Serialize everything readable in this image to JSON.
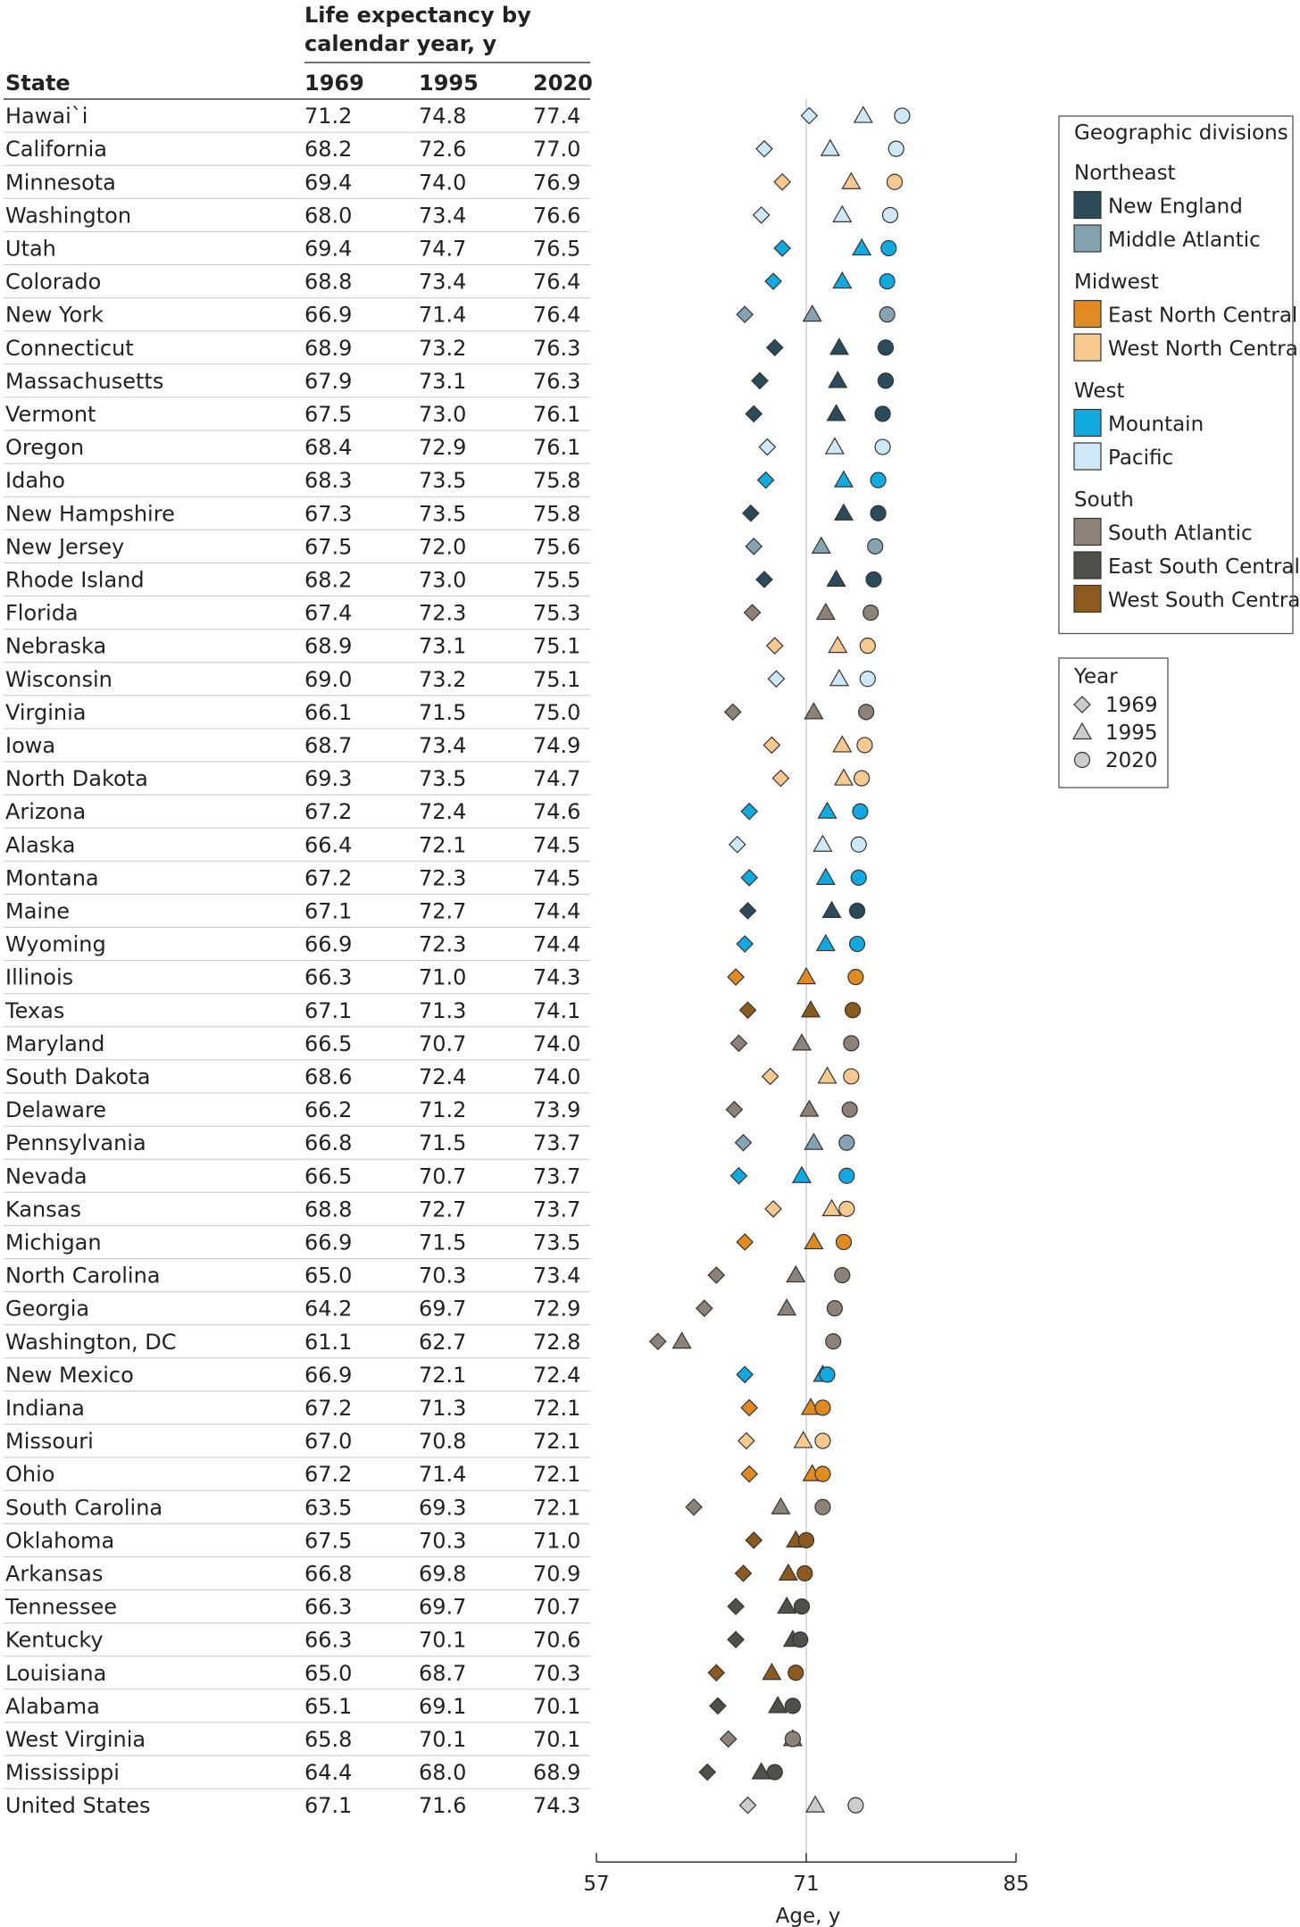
{
  "chart_data": {
    "type": "scatter",
    "header_title": [
      "Life expectancy by",
      "calendar year, y"
    ],
    "columns": [
      "State",
      "1969",
      "1995",
      "2020"
    ],
    "xlabel": "Age, y",
    "xlim": [
      57,
      85
    ],
    "xticks": [
      "57",
      "71",
      "85"
    ],
    "legend": {
      "title": "Geographic divisions",
      "groups": [
        {
          "name": "Northeast",
          "items": [
            {
              "key": "NE",
              "label": "New England"
            },
            {
              "key": "MA",
              "label": "Middle Atlantic"
            }
          ]
        },
        {
          "name": "Midwest",
          "items": [
            {
              "key": "ENC",
              "label": "East North Central"
            },
            {
              "key": "WNC",
              "label": "West North Central"
            }
          ]
        },
        {
          "name": "West",
          "items": [
            {
              "key": "MT",
              "label": "Mountain"
            },
            {
              "key": "PA",
              "label": "Pacific"
            }
          ]
        },
        {
          "name": "South",
          "items": [
            {
              "key": "SA",
              "label": "South Atlantic"
            },
            {
              "key": "ESC",
              "label": "East South Central"
            },
            {
              "key": "WSC",
              "label": "West South Central"
            }
          ]
        }
      ],
      "year_title": "Year",
      "years": [
        "1969",
        "1995",
        "2020"
      ]
    },
    "colors": {
      "NE": "#2c4b5a",
      "MA": "#85a3b1",
      "ENC": "#e08a21",
      "WNC": "#f7c98f",
      "MT": "#12a8e0",
      "PA": "#cfe8f5",
      "SA": "#8c8278",
      "ESC": "#514f4a",
      "WSC": "#8c5a1e",
      "US": "#cccccc"
    },
    "rows": [
      {
        "state": "Hawai`i",
        "y1969": "71.2",
        "y1995": "74.8",
        "y2020": "77.4",
        "div": "PA"
      },
      {
        "state": "California",
        "y1969": "68.2",
        "y1995": "72.6",
        "y2020": "77.0",
        "div": "PA"
      },
      {
        "state": "Minnesota",
        "y1969": "69.4",
        "y1995": "74.0",
        "y2020": "76.9",
        "div": "WNC"
      },
      {
        "state": "Washington",
        "y1969": "68.0",
        "y1995": "73.4",
        "y2020": "76.6",
        "div": "PA"
      },
      {
        "state": "Utah",
        "y1969": "69.4",
        "y1995": "74.7",
        "y2020": "76.5",
        "div": "MT"
      },
      {
        "state": "Colorado",
        "y1969": "68.8",
        "y1995": "73.4",
        "y2020": "76.4",
        "div": "MT"
      },
      {
        "state": "New York",
        "y1969": "66.9",
        "y1995": "71.4",
        "y2020": "76.4",
        "div": "MA"
      },
      {
        "state": "Connecticut",
        "y1969": "68.9",
        "y1995": "73.2",
        "y2020": "76.3",
        "div": "NE"
      },
      {
        "state": "Massachusetts",
        "y1969": "67.9",
        "y1995": "73.1",
        "y2020": "76.3",
        "div": "NE"
      },
      {
        "state": "Vermont",
        "y1969": "67.5",
        "y1995": "73.0",
        "y2020": "76.1",
        "div": "NE"
      },
      {
        "state": "Oregon",
        "y1969": "68.4",
        "y1995": "72.9",
        "y2020": "76.1",
        "div": "PA"
      },
      {
        "state": "Idaho",
        "y1969": "68.3",
        "y1995": "73.5",
        "y2020": "75.8",
        "div": "MT"
      },
      {
        "state": "New Hampshire",
        "y1969": "67.3",
        "y1995": "73.5",
        "y2020": "75.8",
        "div": "NE"
      },
      {
        "state": "New Jersey",
        "y1969": "67.5",
        "y1995": "72.0",
        "y2020": "75.6",
        "div": "MA"
      },
      {
        "state": "Rhode Island",
        "y1969": "68.2",
        "y1995": "73.0",
        "y2020": "75.5",
        "div": "NE"
      },
      {
        "state": "Florida",
        "y1969": "67.4",
        "y1995": "72.3",
        "y2020": "75.3",
        "div": "SA"
      },
      {
        "state": "Nebraska",
        "y1969": "68.9",
        "y1995": "73.1",
        "y2020": "75.1",
        "div": "WNC"
      },
      {
        "state": "Wisconsin",
        "y1969": "69.0",
        "y1995": "73.2",
        "y2020": "75.1",
        "div": "PA"
      },
      {
        "state": "Virginia",
        "y1969": "66.1",
        "y1995": "71.5",
        "y2020": "75.0",
        "div": "SA"
      },
      {
        "state": "Iowa",
        "y1969": "68.7",
        "y1995": "73.4",
        "y2020": "74.9",
        "div": "WNC"
      },
      {
        "state": "North Dakota",
        "y1969": "69.3",
        "y1995": "73.5",
        "y2020": "74.7",
        "div": "WNC"
      },
      {
        "state": "Arizona",
        "y1969": "67.2",
        "y1995": "72.4",
        "y2020": "74.6",
        "div": "MT"
      },
      {
        "state": "Alaska",
        "y1969": "66.4",
        "y1995": "72.1",
        "y2020": "74.5",
        "div": "PA"
      },
      {
        "state": "Montana",
        "y1969": "67.2",
        "y1995": "72.3",
        "y2020": "74.5",
        "div": "MT"
      },
      {
        "state": "Maine",
        "y1969": "67.1",
        "y1995": "72.7",
        "y2020": "74.4",
        "div": "NE"
      },
      {
        "state": "Wyoming",
        "y1969": "66.9",
        "y1995": "72.3",
        "y2020": "74.4",
        "div": "MT"
      },
      {
        "state": "Illinois",
        "y1969": "66.3",
        "y1995": "71.0",
        "y2020": "74.3",
        "div": "ENC"
      },
      {
        "state": "Texas",
        "y1969": "67.1",
        "y1995": "71.3",
        "y2020": "74.1",
        "div": "WSC"
      },
      {
        "state": "Maryland",
        "y1969": "66.5",
        "y1995": "70.7",
        "y2020": "74.0",
        "div": "SA"
      },
      {
        "state": "South Dakota",
        "y1969": "68.6",
        "y1995": "72.4",
        "y2020": "74.0",
        "div": "WNC"
      },
      {
        "state": "Delaware",
        "y1969": "66.2",
        "y1995": "71.2",
        "y2020": "73.9",
        "div": "SA"
      },
      {
        "state": "Pennsylvania",
        "y1969": "66.8",
        "y1995": "71.5",
        "y2020": "73.7",
        "div": "MA"
      },
      {
        "state": "Nevada",
        "y1969": "66.5",
        "y1995": "70.7",
        "y2020": "73.7",
        "div": "MT"
      },
      {
        "state": "Kansas",
        "y1969": "68.8",
        "y1995": "72.7",
        "y2020": "73.7",
        "div": "WNC"
      },
      {
        "state": "Michigan",
        "y1969": "66.9",
        "y1995": "71.5",
        "y2020": "73.5",
        "div": "ENC"
      },
      {
        "state": "North Carolina",
        "y1969": "65.0",
        "y1995": "70.3",
        "y2020": "73.4",
        "div": "SA"
      },
      {
        "state": "Georgia",
        "y1969": "64.2",
        "y1995": "69.7",
        "y2020": "72.9",
        "div": "SA"
      },
      {
        "state": "Washington, DC",
        "y1969": "61.1",
        "y1995": "62.7",
        "y2020": "72.8",
        "div": "SA"
      },
      {
        "state": "New Mexico",
        "y1969": "66.9",
        "y1995": "72.1",
        "y2020": "72.4",
        "div": "MT"
      },
      {
        "state": "Indiana",
        "y1969": "67.2",
        "y1995": "71.3",
        "y2020": "72.1",
        "div": "ENC"
      },
      {
        "state": "Missouri",
        "y1969": "67.0",
        "y1995": "70.8",
        "y2020": "72.1",
        "div": "WNC"
      },
      {
        "state": "Ohio",
        "y1969": "67.2",
        "y1995": "71.4",
        "y2020": "72.1",
        "div": "ENC"
      },
      {
        "state": "South Carolina",
        "y1969": "63.5",
        "y1995": "69.3",
        "y2020": "72.1",
        "div": "SA"
      },
      {
        "state": "Oklahoma",
        "y1969": "67.5",
        "y1995": "70.3",
        "y2020": "71.0",
        "div": "WSC"
      },
      {
        "state": "Arkansas",
        "y1969": "66.8",
        "y1995": "69.8",
        "y2020": "70.9",
        "div": "WSC"
      },
      {
        "state": "Tennessee",
        "y1969": "66.3",
        "y1995": "69.7",
        "y2020": "70.7",
        "div": "ESC"
      },
      {
        "state": "Kentucky",
        "y1969": "66.3",
        "y1995": "70.1",
        "y2020": "70.6",
        "div": "ESC"
      },
      {
        "state": "Louisiana",
        "y1969": "65.0",
        "y1995": "68.7",
        "y2020": "70.3",
        "div": "WSC"
      },
      {
        "state": "Alabama",
        "y1969": "65.1",
        "y1995": "69.1",
        "y2020": "70.1",
        "div": "ESC"
      },
      {
        "state": "West Virginia",
        "y1969": "65.8",
        "y1995": "70.1",
        "y2020": "70.1",
        "div": "SA"
      },
      {
        "state": "Mississippi",
        "y1969": "64.4",
        "y1995": "68.0",
        "y2020": "68.9",
        "div": "ESC"
      },
      {
        "state": "United States",
        "y1969": "67.1",
        "y1995": "71.6",
        "y2020": "74.3",
        "div": "US"
      }
    ]
  }
}
